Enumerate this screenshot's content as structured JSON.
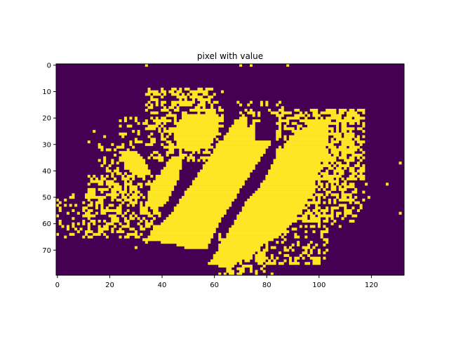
{
  "chart_data": {
    "type": "heatmap",
    "title": "pixel with value",
    "xlabel": "",
    "ylabel": "",
    "colormap": "viridis",
    "colors": {
      "zero": "#440154",
      "one": "#fde725"
    },
    "grid": false,
    "value_range": [
      0,
      1
    ],
    "xlim": [
      -0.5,
      132.5
    ],
    "ylim": [
      79.5,
      -0.5
    ],
    "xticks": [
      0,
      20,
      40,
      60,
      80,
      100,
      120
    ],
    "yticks": [
      0,
      10,
      20,
      30,
      40,
      50,
      60,
      70
    ],
    "cols": 133,
    "rows": 80,
    "bands": [
      {
        "value": 1,
        "polygon": [
          [
            33,
            66
          ],
          [
            42,
            58
          ],
          [
            56,
            38
          ],
          [
            68,
            21
          ],
          [
            72,
            19
          ],
          [
            73,
            24
          ],
          [
            76,
            20
          ],
          [
            76,
            28
          ],
          [
            82,
            29
          ],
          [
            76,
            38
          ],
          [
            70,
            47
          ],
          [
            63,
            58
          ],
          [
            57,
            70
          ],
          [
            52,
            70
          ],
          [
            46,
            68
          ],
          [
            33,
            66
          ]
        ]
      },
      {
        "value": 1,
        "polygon": [
          [
            58,
            75
          ],
          [
            66,
            62
          ],
          [
            72,
            52
          ],
          [
            78,
            45
          ],
          [
            84,
            34
          ],
          [
            90,
            27
          ],
          [
            98,
            21
          ],
          [
            103,
            20
          ],
          [
            104,
            27
          ],
          [
            100,
            40
          ],
          [
            96,
            51
          ],
          [
            92,
            57
          ],
          [
            86,
            64
          ],
          [
            79,
            68
          ],
          [
            72,
            73
          ],
          [
            66,
            77
          ],
          [
            58,
            75
          ]
        ]
      },
      {
        "value": 1,
        "polygon": [
          [
            44,
            25
          ],
          [
            48,
            19
          ],
          [
            55,
            19
          ],
          [
            60,
            16
          ],
          [
            62,
            25
          ],
          [
            58,
            31
          ],
          [
            52,
            33
          ],
          [
            46,
            31
          ],
          [
            44,
            25
          ]
        ]
      },
      {
        "value": 1,
        "polygon": [
          [
            40,
            40
          ],
          [
            44,
            34
          ],
          [
            48,
            35
          ],
          [
            46,
            44
          ],
          [
            42,
            52
          ],
          [
            37,
            55
          ],
          [
            34,
            52
          ],
          [
            36,
            45
          ],
          [
            40,
            40
          ]
        ]
      },
      {
        "value": 1,
        "polygon": [
          [
            24,
            33
          ],
          [
            30,
            32
          ],
          [
            34,
            37
          ],
          [
            36,
            41
          ],
          [
            32,
            43
          ],
          [
            26,
            39
          ],
          [
            24,
            33
          ]
        ]
      }
    ],
    "scatter_regions": [
      {
        "x": [
          34,
          64
        ],
        "y": [
          9,
          37
        ],
        "density": 0.38
      },
      {
        "x": [
          40,
          60
        ],
        "y": [
          9,
          18
        ],
        "density": 0.3
      },
      {
        "x": [
          84,
          114
        ],
        "y": [
          17,
          60
        ],
        "density": 0.45
      },
      {
        "x": [
          98,
          118
        ],
        "y": [
          17,
          44
        ],
        "density": 0.5
      },
      {
        "x": [
          68,
          88
        ],
        "y": [
          14,
          22
        ],
        "density": 0.22
      },
      {
        "x": [
          62,
          80
        ],
        "y": [
          64,
          80
        ],
        "density": 0.42
      },
      {
        "x": [
          76,
          104
        ],
        "y": [
          55,
          76
        ],
        "density": 0.3
      },
      {
        "x": [
          12,
          40
        ],
        "y": [
          42,
          66
        ],
        "density": 0.4
      },
      {
        "x": [
          0,
          14
        ],
        "y": [
          48,
          66
        ],
        "density": 0.22
      },
      {
        "x": [
          16,
          30
        ],
        "y": [
          30,
          52
        ],
        "density": 0.3
      },
      {
        "x": [
          22,
          40
        ],
        "y": [
          20,
          32
        ],
        "density": 0.14
      },
      {
        "x": [
          90,
          120
        ],
        "y": [
          44,
          62
        ],
        "density": 0.12
      }
    ],
    "scatter_seed": 12345,
    "isolated_pixels": [
      [
        34,
        0
      ],
      [
        70,
        0
      ],
      [
        74,
        0
      ],
      [
        88,
        0
      ],
      [
        40,
        10
      ],
      [
        131,
        37
      ],
      [
        118,
        45
      ],
      [
        126,
        45
      ],
      [
        131,
        56
      ],
      [
        14,
        25
      ],
      [
        18,
        27
      ],
      [
        12,
        29
      ],
      [
        22,
        32
      ],
      [
        38,
        23
      ],
      [
        26,
        21
      ],
      [
        30,
        21
      ],
      [
        30,
        69
      ],
      [
        34,
        67
      ],
      [
        76,
        79
      ],
      [
        82,
        79
      ],
      [
        94,
        69
      ],
      [
        88,
        72
      ]
    ]
  }
}
